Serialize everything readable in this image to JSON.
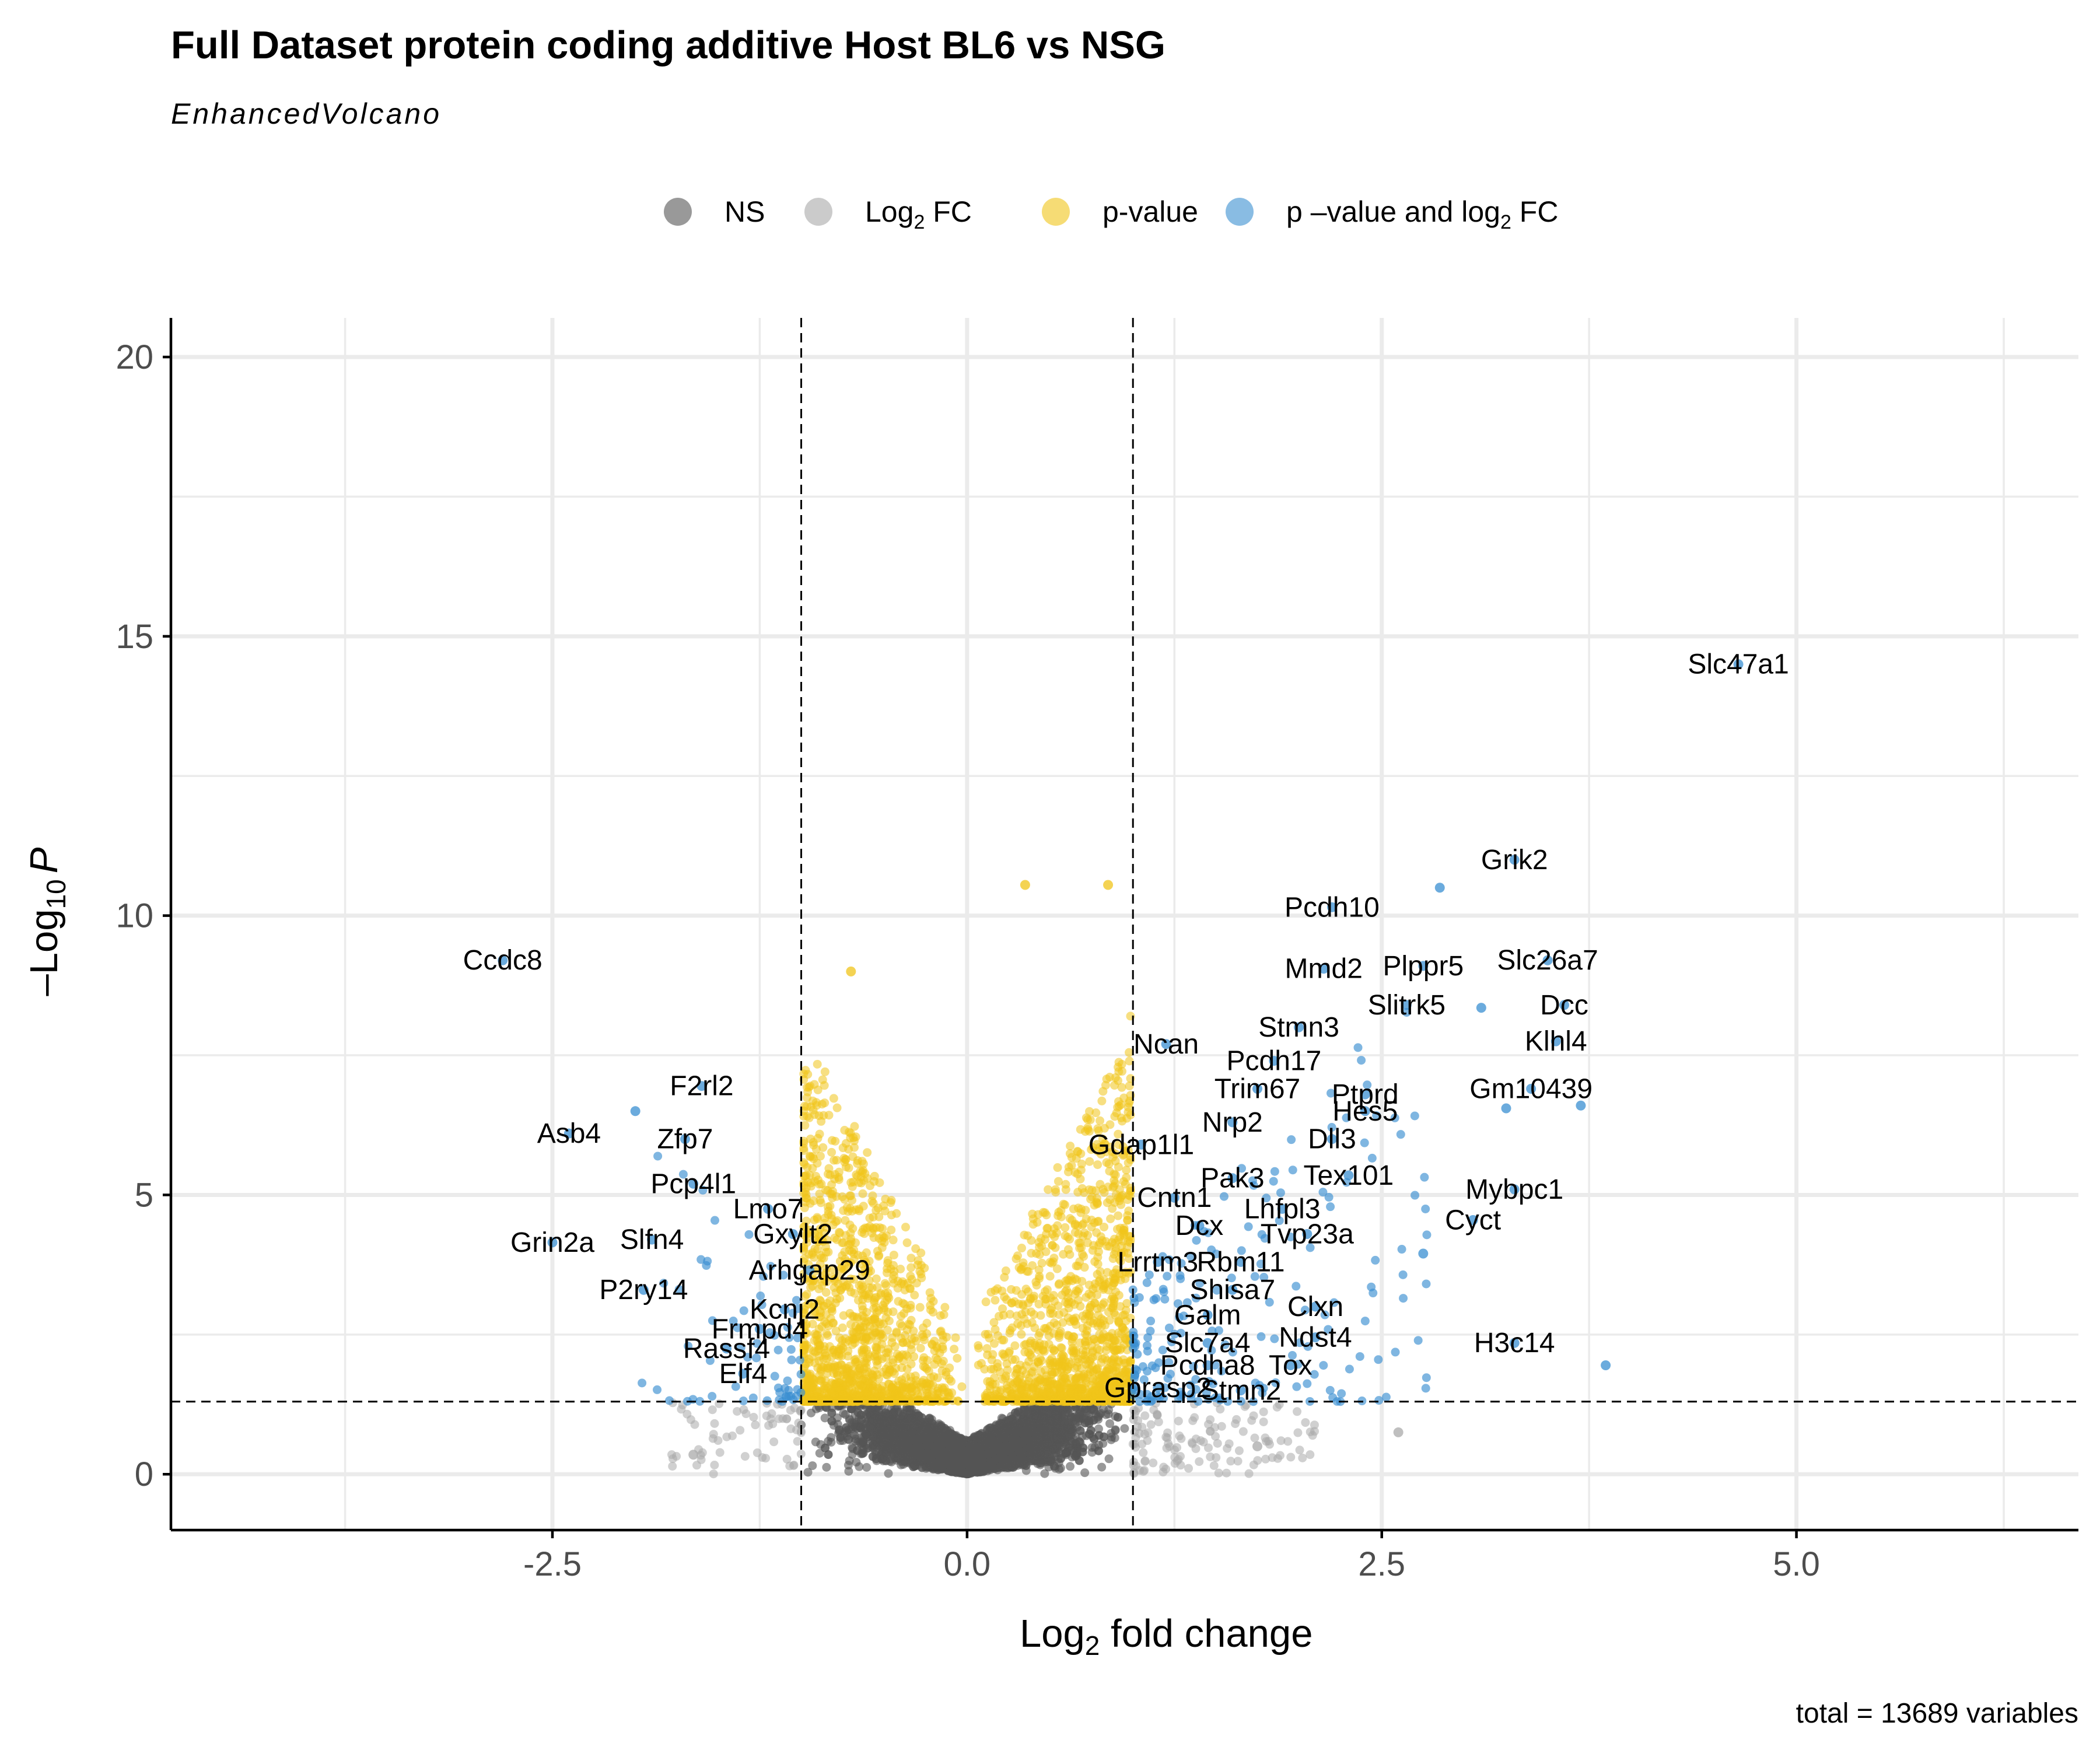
{
  "chart_data": {
    "type": "scatter",
    "title": "Full Dataset protein coding additive Host BL6 vs NSG",
    "subtitle": "EnhancedVolcano",
    "xlabel": {
      "base": "Log",
      "sub": "2",
      "rest": " fold change"
    },
    "ylabel": {
      "prefix": "–Log",
      "sub": "10",
      "var": "P"
    },
    "caption": "total = 13689 variables",
    "xlim": [
      -4.8,
      6.7
    ],
    "ylim": [
      -1.0,
      20.7
    ],
    "x_ticks": [
      -2.5,
      0.0,
      2.5,
      5.0
    ],
    "x_tick_labels": [
      "-2.5",
      "0.0",
      "2.5",
      "5.0"
    ],
    "y_ticks": [
      0,
      5,
      10,
      15,
      20
    ],
    "y_tick_labels": [
      "0",
      "5",
      "10",
      "15",
      "20"
    ],
    "fc_cutoff": 1.0,
    "p_cutoff_log10": 1.3,
    "grid": true,
    "legend_position": "top",
    "legend": [
      {
        "key": "ns",
        "label": "NS",
        "color": "#555555"
      },
      {
        "key": "fc",
        "label": "Log",
        "sub": "2",
        "rest": " FC",
        "color": "#a9a9a9"
      },
      {
        "key": "p",
        "label": "p-value",
        "color": "#f0c419"
      },
      {
        "key": "both",
        "label": "p –value and log",
        "sub": "2",
        "rest": " FC",
        "color": "#3a8fd1"
      }
    ],
    "labeled_points": [
      {
        "gene": "Slc47a1",
        "x": 4.65,
        "y": 14.5
      },
      {
        "gene": "Grik2",
        "x": 3.3,
        "y": 11.0
      },
      {
        "gene": "Pcdh10",
        "x": 2.2,
        "y": 10.15
      },
      {
        "gene": "Ccdc8",
        "x": -2.8,
        "y": 9.2
      },
      {
        "gene": "Mmd2",
        "x": 2.15,
        "y": 9.05
      },
      {
        "gene": "Plppr5",
        "x": 2.75,
        "y": 9.1
      },
      {
        "gene": "Slc26a7",
        "x": 3.5,
        "y": 9.2
      },
      {
        "gene": "Dcc",
        "x": 3.6,
        "y": 8.4
      },
      {
        "gene": "Slitrk5",
        "x": 2.65,
        "y": 8.4
      },
      {
        "gene": "Stmn3",
        "x": 2.0,
        "y": 8.0
      },
      {
        "gene": "Ncan",
        "x": 1.2,
        "y": 7.7
      },
      {
        "gene": "Klhl4",
        "x": 3.55,
        "y": 7.75
      },
      {
        "gene": "Pcdh17",
        "x": 1.85,
        "y": 7.4
      },
      {
        "gene": "F2rl2",
        "x": -1.6,
        "y": 6.95
      },
      {
        "gene": "Trim67",
        "x": 1.75,
        "y": 6.9
      },
      {
        "gene": "Ptprd",
        "x": 2.4,
        "y": 6.8
      },
      {
        "gene": "Gm10439",
        "x": 3.4,
        "y": 6.9
      },
      {
        "gene": "Hes5",
        "x": 2.4,
        "y": 6.5
      },
      {
        "gene": "Nrp2",
        "x": 1.6,
        "y": 6.3
      },
      {
        "gene": "Asb4",
        "x": -2.4,
        "y": 6.1
      },
      {
        "gene": "Zfp7",
        "x": -1.7,
        "y": 6.0
      },
      {
        "gene": "Dll3",
        "x": 2.2,
        "y": 6.0
      },
      {
        "gene": "Gdap1l1",
        "x": 1.05,
        "y": 5.9
      },
      {
        "gene": "Pak3",
        "x": 1.6,
        "y": 5.3
      },
      {
        "gene": "Tex101",
        "x": 2.3,
        "y": 5.35
      },
      {
        "gene": "Pcp4l1",
        "x": -1.65,
        "y": 5.2
      },
      {
        "gene": "Mybpc1",
        "x": 3.3,
        "y": 5.1
      },
      {
        "gene": "Cntn1",
        "x": 1.25,
        "y": 4.95
      },
      {
        "gene": "Lmo7",
        "x": -1.2,
        "y": 4.75
      },
      {
        "gene": "Lhfpl3",
        "x": 1.9,
        "y": 4.75
      },
      {
        "gene": "Cyct",
        "x": 3.05,
        "y": 4.55
      },
      {
        "gene": "Dcx",
        "x": 1.4,
        "y": 4.45
      },
      {
        "gene": "Tvp23a",
        "x": 2.05,
        "y": 4.3
      },
      {
        "gene": "Gxylt2",
        "x": -1.05,
        "y": 4.3
      },
      {
        "gene": "Slfn4",
        "x": -1.9,
        "y": 4.2
      },
      {
        "gene": "Grin2a",
        "x": -2.5,
        "y": 4.15
      },
      {
        "gene": "Lrrtm3",
        "x": 1.15,
        "y": 3.8
      },
      {
        "gene": "Rbm11",
        "x": 1.65,
        "y": 3.8
      },
      {
        "gene": "Arhgap29",
        "x": -0.95,
        "y": 3.65
      },
      {
        "gene": "Shisa7",
        "x": 1.6,
        "y": 3.3
      },
      {
        "gene": "P2ry14",
        "x": -1.95,
        "y": 3.3
      },
      {
        "gene": "Clxn",
        "x": 2.1,
        "y": 3.0
      },
      {
        "gene": "Kcnj2",
        "x": -1.1,
        "y": 2.95
      },
      {
        "gene": "Galm",
        "x": 1.45,
        "y": 2.85
      },
      {
        "gene": "Frmpd4",
        "x": -1.25,
        "y": 2.6
      },
      {
        "gene": "Ndst4",
        "x": 2.1,
        "y": 2.45
      },
      {
        "gene": "Slc7a4",
        "x": 1.45,
        "y": 2.35
      },
      {
        "gene": "H3c14",
        "x": 3.3,
        "y": 2.35
      },
      {
        "gene": "Rassf4",
        "x": -1.45,
        "y": 2.25
      },
      {
        "gene": "Pcdha8",
        "x": 1.45,
        "y": 1.95
      },
      {
        "gene": "Tox",
        "x": 1.95,
        "y": 1.95
      },
      {
        "gene": "Elf4",
        "x": -1.35,
        "y": 1.8
      },
      {
        "gene": "Gprasp2",
        "x": 1.15,
        "y": 1.55
      },
      {
        "gene": "Stmn2",
        "x": 1.65,
        "y": 1.5
      }
    ],
    "extra_points": [
      {
        "x": 0.35,
        "y": 10.55,
        "group": "p"
      },
      {
        "x": 0.85,
        "y": 10.55,
        "group": "p"
      },
      {
        "x": -0.7,
        "y": 9.0,
        "group": "p"
      },
      {
        "x": 3.85,
        "y": 1.95,
        "group": "both"
      },
      {
        "x": 3.7,
        "y": 6.6,
        "group": "both"
      },
      {
        "x": 2.85,
        "y": 10.5,
        "group": "both"
      },
      {
        "x": 3.1,
        "y": 8.35,
        "group": "both"
      },
      {
        "x": 3.25,
        "y": 6.55,
        "group": "both"
      },
      {
        "x": 2.75,
        "y": 3.95,
        "group": "both"
      },
      {
        "x": -2.0,
        "y": 6.5,
        "group": "both"
      },
      {
        "x": 2.6,
        "y": 0.75,
        "group": "fc"
      },
      {
        "x": 1.75,
        "y": 0.5,
        "group": "fc"
      },
      {
        "x": -1.65,
        "y": 0.35,
        "group": "fc"
      }
    ]
  }
}
